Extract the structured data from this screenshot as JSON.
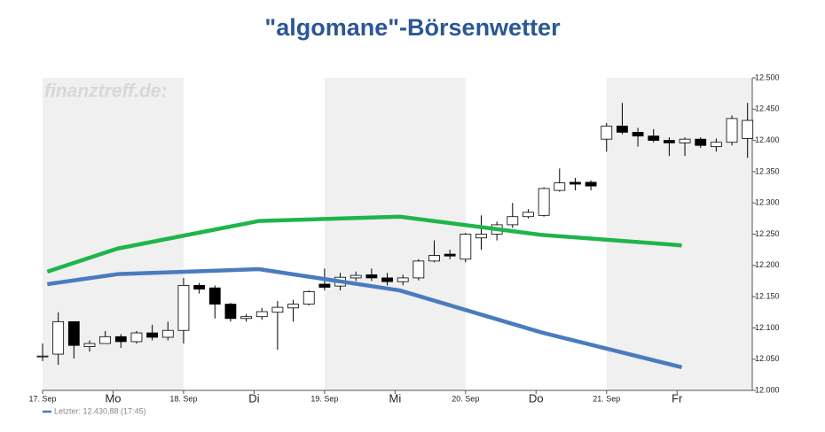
{
  "chart_data": {
    "type": "candlestick",
    "title": "\"algomane\"-Börsenwetter",
    "watermark": "finanztreff.de:",
    "legend_label": "Letzter: 12.430,88 (17:45)",
    "legend_color": "#4a7bbf",
    "up_color": "#ffffff",
    "down_color": "#000000",
    "band_color": "#f0f0f0",
    "x": [
      0,
      1,
      2,
      3,
      4,
      5,
      6,
      7,
      8,
      9,
      10,
      11,
      12,
      13,
      14,
      15,
      16,
      17,
      18,
      19,
      20,
      21,
      22,
      23,
      24,
      25,
      26,
      27,
      28,
      29,
      30,
      31,
      32,
      33,
      34,
      35,
      36,
      37,
      38,
      39,
      40,
      41,
      42,
      43,
      44,
      45
    ],
    "open": [
      12054,
      12058,
      12110,
      12070,
      12075,
      12086,
      12078,
      12092,
      12085,
      12096,
      12168,
      12164,
      12138,
      12115,
      12118,
      12125,
      12132,
      12138,
      12170,
      12167,
      12180,
      12185,
      12180,
      12174,
      12180,
      12207,
      12218,
      12210,
      12244,
      12250,
      12265,
      12278,
      12280,
      12320,
      12333,
      12333,
      12402,
      12423,
      12413,
      12407,
      12400,
      12396,
      12402,
      12390,
      12397,
      12403
    ],
    "high": [
      12075,
      12125,
      12110,
      12080,
      12095,
      12090,
      12095,
      12105,
      12110,
      12180,
      12172,
      12168,
      12140,
      12122,
      12132,
      12143,
      12145,
      12160,
      12195,
      12188,
      12190,
      12195,
      12188,
      12185,
      12210,
      12240,
      12225,
      12252,
      12280,
      12270,
      12300,
      12290,
      12325,
      12355,
      12340,
      12336,
      12428,
      12460,
      12420,
      12418,
      12405,
      12405,
      12405,
      12403,
      12440,
      12460
    ],
    "low": [
      12047,
      12041,
      12051,
      12062,
      12075,
      12068,
      12075,
      12080,
      12080,
      12075,
      12155,
      12115,
      12110,
      12110,
      12113,
      12065,
      12110,
      12136,
      12160,
      12160,
      12175,
      12175,
      12168,
      12168,
      12176,
      12205,
      12210,
      12205,
      12225,
      12240,
      12260,
      12275,
      12278,
      12318,
      12320,
      12320,
      12382,
      12410,
      12390,
      12397,
      12375,
      12375,
      12388,
      12382,
      12392,
      12372
    ],
    "close": [
      12055,
      12110,
      12072,
      12075,
      12086,
      12078,
      12092,
      12085,
      12096,
      12168,
      12162,
      12138,
      12115,
      12118,
      12126,
      12133,
      12138,
      12158,
      12165,
      12181,
      12184,
      12180,
      12174,
      12180,
      12207,
      12216,
      12215,
      12250,
      12250,
      12265,
      12278,
      12285,
      12323,
      12332,
      12330,
      12327,
      12423,
      12413,
      12407,
      12400,
      12396,
      12402,
      12392,
      12397,
      12435,
      12432
    ],
    "lines": [
      {
        "color": "#1fb54a",
        "x": [
          0.3,
          4.8,
          13.8,
          22.8,
          31.8,
          40.8
        ],
        "values": [
          12190,
          12227,
          12271,
          12278,
          12249,
          12232
        ]
      },
      {
        "color": "#4a7bbf",
        "x": [
          0.3,
          4.8,
          13.8,
          22.8,
          31.8,
          40.8
        ],
        "values": [
          12170,
          12186,
          12194,
          12160,
          12093,
          12037
        ]
      }
    ],
    "xlim": [
      0,
      45.3
    ],
    "ylim": [
      12000,
      12500
    ],
    "xticks": [
      {
        "value": 0,
        "label": "17. Sep"
      },
      {
        "value": 4.5,
        "label": "Mo"
      },
      {
        "value": 9,
        "label": "18. Sep"
      },
      {
        "value": 13.5,
        "label": "Di"
      },
      {
        "value": 18,
        "label": "19. Sep"
      },
      {
        "value": 22.5,
        "label": "Mi"
      },
      {
        "value": 27,
        "label": "20. Sep"
      },
      {
        "value": 31.5,
        "label": "Do"
      },
      {
        "value": 36,
        "label": "21. Sep"
      },
      {
        "value": 40.5,
        "label": "Fr"
      }
    ],
    "yticks": [
      {
        "value": 12000,
        "label": "12.000"
      },
      {
        "value": 12050,
        "label": "12.050"
      },
      {
        "value": 12100,
        "label": "12.100"
      },
      {
        "value": 12150,
        "label": "12.150"
      },
      {
        "value": 12200,
        "label": "12.200"
      },
      {
        "value": 12250,
        "label": "12.250"
      },
      {
        "value": 12300,
        "label": "12.300"
      },
      {
        "value": 12350,
        "label": "12.350"
      },
      {
        "value": 12400,
        "label": "12.400"
      },
      {
        "value": 12450,
        "label": "12.450"
      },
      {
        "value": 12500,
        "label": "12.500"
      }
    ]
  }
}
